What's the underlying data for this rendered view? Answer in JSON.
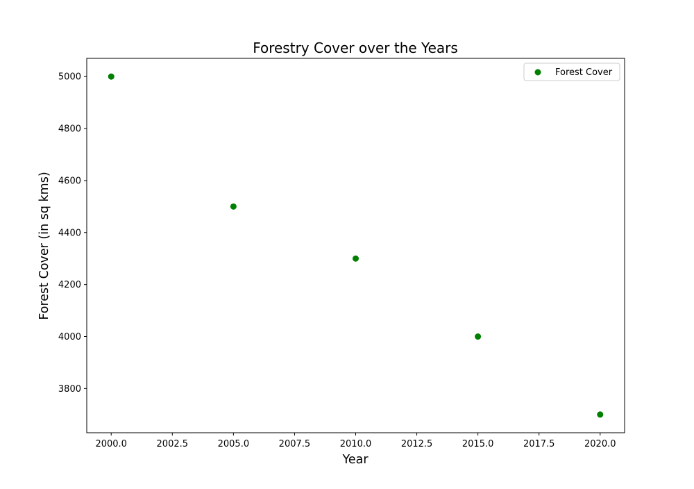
{
  "chart_data": {
    "type": "scatter",
    "title": "Forestry Cover over the Years",
    "xlabel": "Year",
    "ylabel": "Forest Cover (in sq kms)",
    "xlim": [
      1999.0,
      2021.0
    ],
    "ylim": [
      3630,
      5070
    ],
    "xticks": [
      2000.0,
      2002.5,
      2005.0,
      2007.5,
      2010.0,
      2012.5,
      2015.0,
      2017.5,
      2020.0
    ],
    "xtick_labels": [
      "2000.0",
      "2002.5",
      "2005.0",
      "2007.5",
      "2010.0",
      "2012.5",
      "2015.0",
      "2017.5",
      "2020.0"
    ],
    "yticks": [
      3800,
      4000,
      4200,
      4400,
      4600,
      4800,
      5000
    ],
    "ytick_labels": [
      "3800",
      "4000",
      "4200",
      "4400",
      "4600",
      "4800",
      "5000"
    ],
    "grid": false,
    "legend_position": "top-right",
    "series": [
      {
        "name": "Forest Cover",
        "color": "#008000",
        "x": [
          2000,
          2005,
          2010,
          2015,
          2020
        ],
        "y": [
          5000,
          4500,
          4300,
          4000,
          3700
        ]
      }
    ]
  }
}
